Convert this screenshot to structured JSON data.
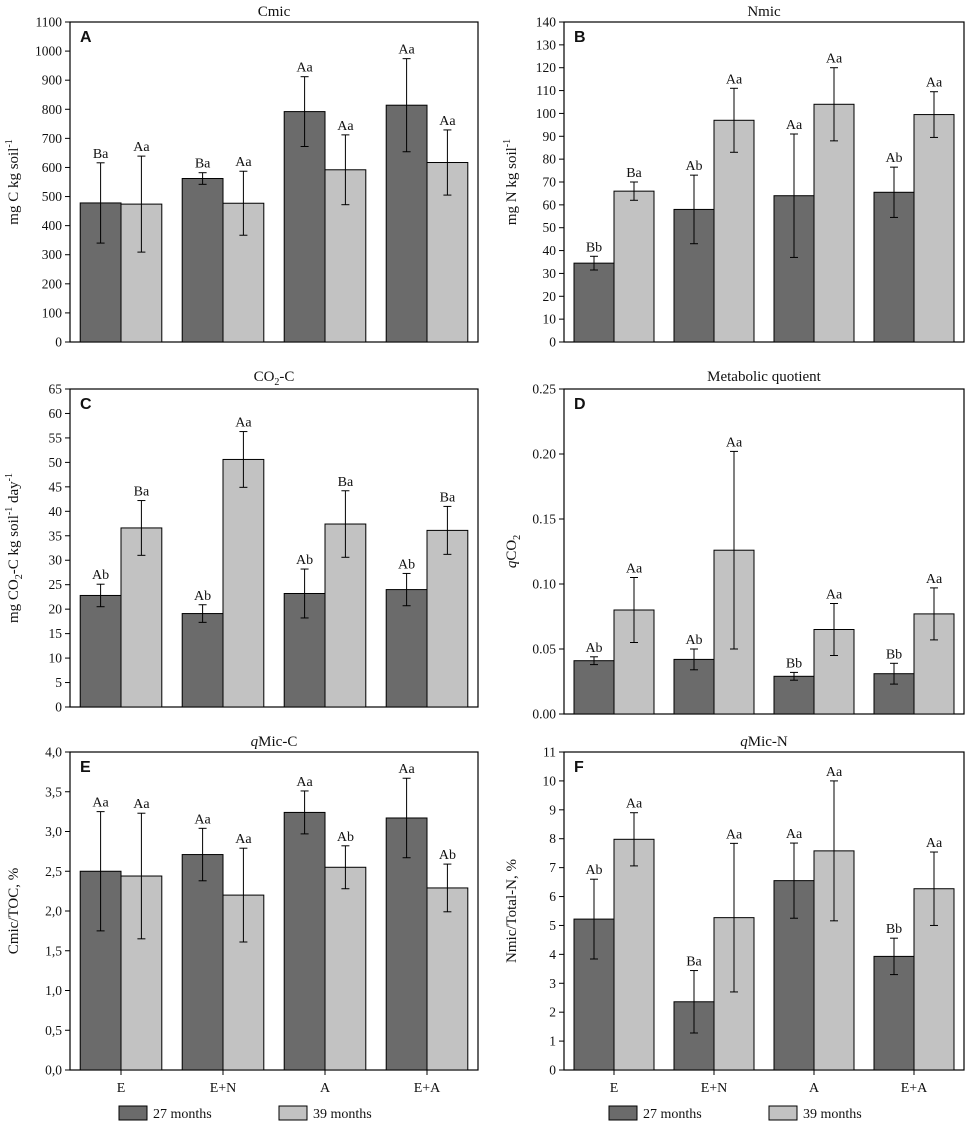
{
  "figure": {
    "legend": [
      {
        "label": "27 months",
        "color": "#6b6b6b"
      },
      {
        "label": "39 months",
        "color": "#c2c2c2"
      }
    ]
  },
  "chart_data": [
    {
      "id": "cmic",
      "type": "bar",
      "panel": "A",
      "title": "Cmic",
      "ylabel": "mg C kg soil",
      "ylabel_sup": "-1",
      "categories": [
        "E",
        "E+N",
        "A",
        "E+A"
      ],
      "ylim": [
        0,
        1100
      ],
      "yticks": [
        0,
        100,
        200,
        300,
        400,
        500,
        600,
        700,
        800,
        900,
        1000,
        1100
      ],
      "ytick_labels": [
        "0",
        "100",
        "200",
        "300",
        "400",
        "500",
        "600",
        "700",
        "800",
        "900",
        "1000",
        "1100"
      ],
      "series": [
        {
          "name": "27 months",
          "values": [
            478,
            562,
            792,
            814
          ],
          "errors": [
            138,
            20,
            120,
            160
          ],
          "labels": [
            "Ba",
            "Ba",
            "Aa",
            "Aa"
          ]
        },
        {
          "name": "39 months",
          "values": [
            474,
            477,
            592,
            617
          ],
          "errors": [
            165,
            110,
            120,
            112
          ],
          "labels": [
            "Aa",
            "Aa",
            "Aa",
            "Aa"
          ]
        }
      ]
    },
    {
      "id": "nmic",
      "type": "bar",
      "panel": "B",
      "title": "Nmic",
      "ylabel": "mg N kg soil",
      "ylabel_sup": "-1",
      "categories": [
        "E",
        "E+N",
        "A",
        "E+A"
      ],
      "ylim": [
        0,
        140
      ],
      "yticks": [
        0,
        10,
        20,
        30,
        40,
        50,
        60,
        70,
        80,
        90,
        100,
        110,
        120,
        130,
        140
      ],
      "ytick_labels": [
        "0",
        "10",
        "20",
        "30",
        "40",
        "50",
        "60",
        "70",
        "80",
        "90",
        "100",
        "110",
        "120",
        "130",
        "140"
      ],
      "series": [
        {
          "name": "27 months",
          "values": [
            34.5,
            58,
            64,
            65.5
          ],
          "errors": [
            3,
            15,
            27,
            11
          ],
          "labels": [
            "Bb",
            "Ab",
            "Aa",
            "Ab"
          ]
        },
        {
          "name": "39 months",
          "values": [
            66,
            97,
            104,
            99.5
          ],
          "errors": [
            4,
            14,
            16,
            10
          ],
          "labels": [
            "Ba",
            "Aa",
            "Aa",
            "Aa"
          ]
        }
      ]
    },
    {
      "id": "co2c",
      "type": "bar",
      "panel": "C",
      "title": "CO",
      "title_sub": "2",
      "title_suffix": "-C",
      "ylabel": "mg CO",
      "ylabel_sub": "2",
      "ylabel_mid": "-C kg soil",
      "ylabel_sup": "-1",
      "ylabel_end": " day",
      "ylabel_sup2": "-1",
      "categories": [
        "E",
        "E+N",
        "A",
        "E+A"
      ],
      "ylim": [
        0,
        65
      ],
      "yticks": [
        0,
        5,
        10,
        15,
        20,
        25,
        30,
        35,
        40,
        45,
        50,
        55,
        60,
        65
      ],
      "ytick_labels": [
        "0",
        "5",
        "10",
        "15",
        "20",
        "25",
        "30",
        "35",
        "40",
        "45",
        "50",
        "55",
        "60",
        "65"
      ],
      "series": [
        {
          "name": "27 months",
          "values": [
            22.8,
            19.1,
            23.2,
            24.0
          ],
          "errors": [
            2.3,
            1.8,
            5.0,
            3.3
          ],
          "labels": [
            "Ab",
            "Ab",
            "Ab",
            "Ab"
          ]
        },
        {
          "name": "39 months",
          "values": [
            36.6,
            50.6,
            37.4,
            36.1
          ],
          "errors": [
            5.6,
            5.7,
            6.8,
            4.9
          ],
          "labels": [
            "Ba",
            "Aa",
            "Ba",
            "Ba"
          ]
        }
      ]
    },
    {
      "id": "metabolic",
      "type": "bar",
      "panel": "D",
      "title": "Metabolic quotient",
      "ylabel": "q",
      "ylabel_mid": "CO",
      "ylabel_sub": "2",
      "categories": [
        "E",
        "E+N",
        "A",
        "E+A"
      ],
      "ylim": [
        0,
        0.25
      ],
      "yticks": [
        0,
        0.05,
        0.1,
        0.15,
        0.2,
        0.25
      ],
      "ytick_labels": [
        "0.00",
        "0.05",
        "0.10",
        "0.15",
        "0.20",
        "0.25"
      ],
      "series": [
        {
          "name": "27 months",
          "values": [
            0.041,
            0.042,
            0.029,
            0.031
          ],
          "errors": [
            0.003,
            0.008,
            0.003,
            0.008
          ],
          "labels": [
            "Ab",
            "Ab",
            "Bb",
            "Bb"
          ]
        },
        {
          "name": "39 months",
          "values": [
            0.08,
            0.126,
            0.065,
            0.077
          ],
          "errors": [
            0.025,
            0.076,
            0.02,
            0.02
          ],
          "labels": [
            "Aa",
            "Aa",
            "Aa",
            "Aa"
          ]
        }
      ]
    },
    {
      "id": "qmicc",
      "type": "bar",
      "panel": "E",
      "title": "q",
      "title_suffix": "Mic-C",
      "ylabel": "Cmic/TOC, %",
      "categories": [
        "E",
        "E+N",
        "A",
        "E+A"
      ],
      "ylim": [
        0,
        4
      ],
      "yticks": [
        0,
        0.5,
        1.0,
        1.5,
        2.0,
        2.5,
        3.0,
        3.5,
        4.0
      ],
      "ytick_labels": [
        "0,0",
        "0,5",
        "1,0",
        "1,5",
        "2,0",
        "2,5",
        "3,0",
        "3,5",
        "4,0"
      ],
      "series": [
        {
          "name": "27 months",
          "values": [
            2.5,
            2.71,
            3.24,
            3.17
          ],
          "errors": [
            0.75,
            0.33,
            0.27,
            0.5
          ],
          "labels": [
            "Aa",
            "Aa",
            "Aa",
            "Aa"
          ]
        },
        {
          "name": "39 months",
          "values": [
            2.44,
            2.2,
            2.55,
            2.29
          ],
          "errors": [
            0.79,
            0.59,
            0.27,
            0.3
          ],
          "labels": [
            "Aa",
            "Aa",
            "Ab",
            "Ab"
          ]
        }
      ]
    },
    {
      "id": "qmicn",
      "type": "bar",
      "panel": "F",
      "title": "q",
      "title_suffix": "Mic-N",
      "ylabel": "Nmic/Total-N, %",
      "categories": [
        "E",
        "E+N",
        "A",
        "E+A"
      ],
      "ylim": [
        0,
        11
      ],
      "yticks": [
        0,
        1,
        2,
        3,
        4,
        5,
        6,
        7,
        8,
        9,
        10,
        11
      ],
      "ytick_labels": [
        "0",
        "1",
        "2",
        "3",
        "4",
        "5",
        "6",
        "7",
        "8",
        "9",
        "10",
        "11"
      ],
      "series": [
        {
          "name": "27 months",
          "values": [
            5.22,
            2.36,
            6.55,
            3.93
          ],
          "errors": [
            1.38,
            1.08,
            1.3,
            0.63
          ],
          "labels": [
            "Ab",
            "Ba",
            "Aa",
            "Bb"
          ]
        },
        {
          "name": "39 months",
          "values": [
            7.98,
            5.27,
            7.58,
            6.27
          ],
          "errors": [
            0.92,
            2.57,
            2.42,
            1.27
          ],
          "labels": [
            "Aa",
            "Aa",
            "Aa",
            "Aa"
          ]
        }
      ]
    }
  ]
}
